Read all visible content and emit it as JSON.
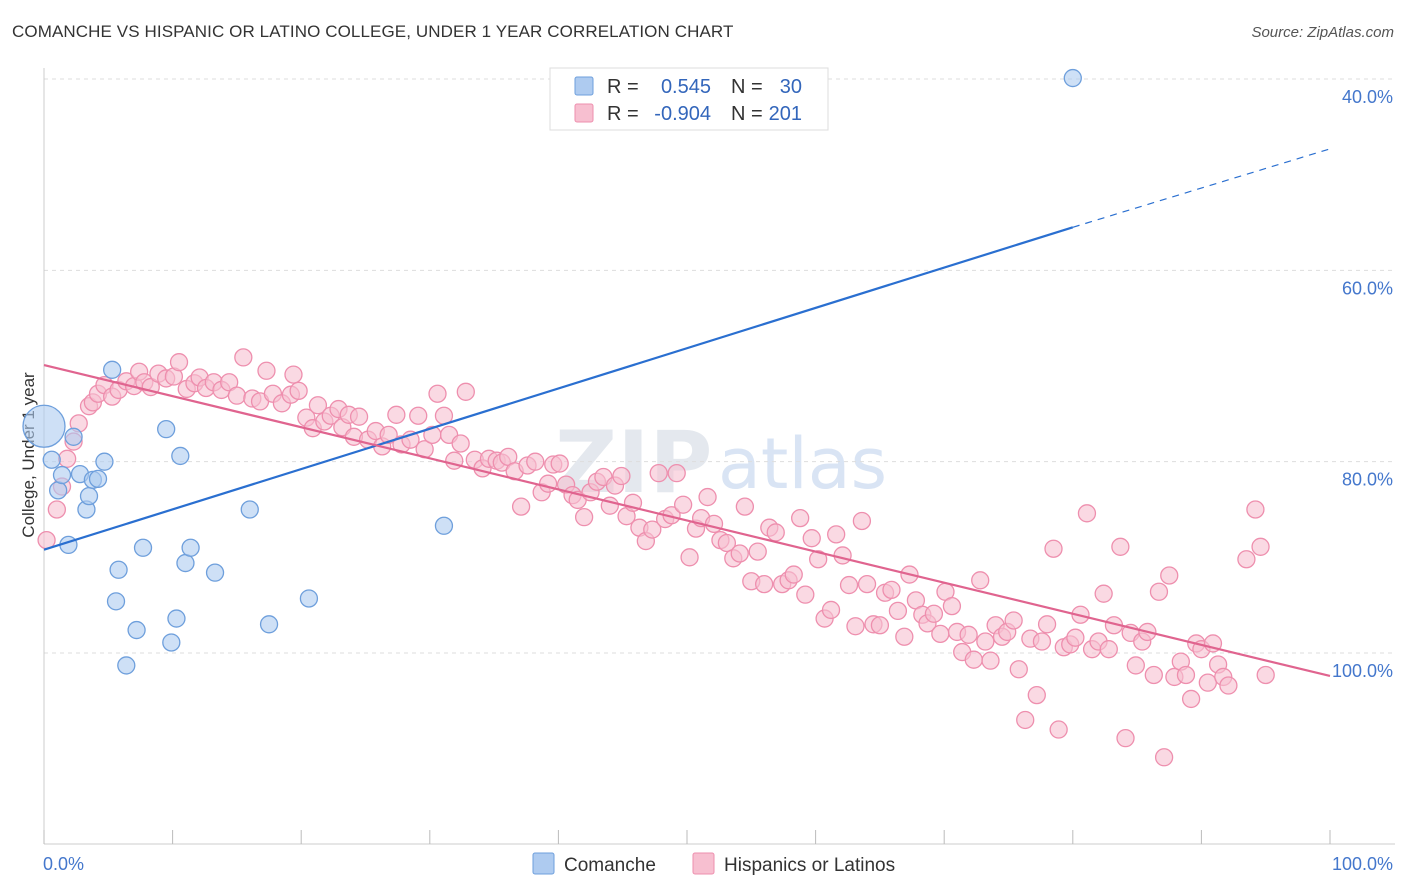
{
  "title": "COMANCHE VS HISPANIC OR LATINO COLLEGE, UNDER 1 YEAR CORRELATION CHART",
  "source": "Source: ZipAtlas.com",
  "watermark": {
    "zip": "ZIP",
    "atlas": "atlas"
  },
  "colors": {
    "comanche_fill": "#aecbf0",
    "comanche_stroke": "#6e9fdc",
    "comanche_line": "#2a6fd0",
    "hispanic_fill": "#f7bfd0",
    "hispanic_stroke": "#ee8fae",
    "hispanic_line": "#e0648f",
    "tick_label": "#4477cc",
    "grid": "#dddddd"
  },
  "legend": {
    "rows": [
      {
        "r_label": "R =",
        "r_value": "0.545",
        "n_label": "N =",
        "n_value": "30"
      },
      {
        "r_label": "R =",
        "r_value": "-0.904",
        "n_label": "N =",
        "n_value": "201"
      }
    ]
  },
  "bottom_legend": {
    "comanche": "Comanche",
    "hispanic": "Hispanics or Latinos"
  },
  "axes": {
    "x_min_label": "0.0%",
    "x_max_label": "100.0%",
    "y_tick_labels": [
      "100.0%",
      "80.0%",
      "60.0%",
      "40.0%"
    ],
    "y_title": "College, Under 1 year"
  },
  "chart_data": {
    "type": "scatter",
    "title": "COMANCHE VS HISPANIC OR LATINO COLLEGE, UNDER 1 YEAR CORRELATION CHART",
    "xlabel": "",
    "ylabel": "College, Under 1 year",
    "xlim": [
      0,
      100
    ],
    "ylim": [
      20,
      102
    ],
    "y_ticks": [
      40,
      60,
      80,
      100
    ],
    "grid": true,
    "legend_placement": "top-center",
    "series": [
      {
        "name": "Comanche",
        "r": 0.545,
        "n": 30,
        "trend": {
          "x": [
            0,
            80
          ],
          "y": [
            50.8,
            84.5
          ],
          "dashed_to": [
            100,
            92.7
          ]
        },
        "points": [
          {
            "x": 0.0,
            "y": 63.7,
            "big": true
          },
          {
            "x": 0.6,
            "y": 60.2
          },
          {
            "x": 1.1,
            "y": 57.0
          },
          {
            "x": 1.4,
            "y": 58.6
          },
          {
            "x": 1.9,
            "y": 51.3
          },
          {
            "x": 2.3,
            "y": 62.6
          },
          {
            "x": 2.8,
            "y": 58.7
          },
          {
            "x": 3.3,
            "y": 55.0
          },
          {
            "x": 3.5,
            "y": 56.4
          },
          {
            "x": 3.8,
            "y": 58.1
          },
          {
            "x": 4.2,
            "y": 58.2
          },
          {
            "x": 4.7,
            "y": 60.0
          },
          {
            "x": 5.3,
            "y": 69.6
          },
          {
            "x": 5.6,
            "y": 45.4
          },
          {
            "x": 5.8,
            "y": 48.7
          },
          {
            "x": 6.4,
            "y": 38.7
          },
          {
            "x": 7.2,
            "y": 42.4
          },
          {
            "x": 7.7,
            "y": 51.0
          },
          {
            "x": 9.5,
            "y": 63.4
          },
          {
            "x": 9.9,
            "y": 41.1
          },
          {
            "x": 10.3,
            "y": 43.6
          },
          {
            "x": 10.6,
            "y": 60.6
          },
          {
            "x": 11.0,
            "y": 49.4
          },
          {
            "x": 11.4,
            "y": 51.0
          },
          {
            "x": 13.3,
            "y": 48.4
          },
          {
            "x": 16.0,
            "y": 55.0
          },
          {
            "x": 17.5,
            "y": 43.0
          },
          {
            "x": 20.6,
            "y": 45.7
          },
          {
            "x": 31.1,
            "y": 53.3
          },
          {
            "x": 80.0,
            "y": 100.1
          }
        ]
      },
      {
        "name": "Hispanics or Latinos",
        "r": -0.904,
        "n": 201,
        "trend": {
          "x": [
            0,
            100
          ],
          "y": [
            70.1,
            37.6
          ]
        },
        "points": [
          {
            "x": 0.2,
            "y": 51.8
          },
          {
            "x": 1.0,
            "y": 55.0
          },
          {
            "x": 1.4,
            "y": 57.4
          },
          {
            "x": 1.8,
            "y": 60.3
          },
          {
            "x": 2.3,
            "y": 62.1
          },
          {
            "x": 2.7,
            "y": 64.0
          },
          {
            "x": 3.5,
            "y": 65.8
          },
          {
            "x": 3.8,
            "y": 66.2
          },
          {
            "x": 4.2,
            "y": 67.1
          },
          {
            "x": 4.7,
            "y": 68.0
          },
          {
            "x": 5.3,
            "y": 66.8
          },
          {
            "x": 5.8,
            "y": 67.5
          },
          {
            "x": 6.4,
            "y": 68.4
          },
          {
            "x": 7.0,
            "y": 67.9
          },
          {
            "x": 7.4,
            "y": 69.4
          },
          {
            "x": 7.8,
            "y": 68.3
          },
          {
            "x": 8.3,
            "y": 67.8
          },
          {
            "x": 8.9,
            "y": 69.2
          },
          {
            "x": 9.5,
            "y": 68.7
          },
          {
            "x": 10.1,
            "y": 68.9
          },
          {
            "x": 10.5,
            "y": 70.4
          },
          {
            "x": 11.1,
            "y": 67.6
          },
          {
            "x": 11.7,
            "y": 68.2
          },
          {
            "x": 12.1,
            "y": 68.8
          },
          {
            "x": 12.6,
            "y": 67.7
          },
          {
            "x": 13.2,
            "y": 68.3
          },
          {
            "x": 13.8,
            "y": 67.5
          },
          {
            "x": 14.4,
            "y": 68.3
          },
          {
            "x": 15.0,
            "y": 66.9
          },
          {
            "x": 15.5,
            "y": 70.9
          },
          {
            "x": 16.2,
            "y": 66.6
          },
          {
            "x": 16.8,
            "y": 66.3
          },
          {
            "x": 17.3,
            "y": 69.5
          },
          {
            "x": 17.8,
            "y": 67.1
          },
          {
            "x": 18.5,
            "y": 66.1
          },
          {
            "x": 19.2,
            "y": 67.0
          },
          {
            "x": 19.4,
            "y": 69.1
          },
          {
            "x": 19.8,
            "y": 67.4
          },
          {
            "x": 20.4,
            "y": 64.6
          },
          {
            "x": 20.9,
            "y": 63.5
          },
          {
            "x": 21.3,
            "y": 65.9
          },
          {
            "x": 21.8,
            "y": 64.2
          },
          {
            "x": 22.3,
            "y": 64.8
          },
          {
            "x": 22.9,
            "y": 65.5
          },
          {
            "x": 23.2,
            "y": 63.6
          },
          {
            "x": 23.7,
            "y": 64.9
          },
          {
            "x": 24.1,
            "y": 62.6
          },
          {
            "x": 24.5,
            "y": 64.7
          },
          {
            "x": 25.2,
            "y": 62.3
          },
          {
            "x": 25.8,
            "y": 63.2
          },
          {
            "x": 26.3,
            "y": 61.6
          },
          {
            "x": 26.8,
            "y": 62.8
          },
          {
            "x": 27.4,
            "y": 64.9
          },
          {
            "x": 27.8,
            "y": 61.8
          },
          {
            "x": 28.5,
            "y": 62.3
          },
          {
            "x": 29.1,
            "y": 64.8
          },
          {
            "x": 29.6,
            "y": 61.3
          },
          {
            "x": 30.2,
            "y": 62.8
          },
          {
            "x": 30.6,
            "y": 67.1
          },
          {
            "x": 31.1,
            "y": 64.8
          },
          {
            "x": 31.5,
            "y": 62.8
          },
          {
            "x": 31.9,
            "y": 60.1
          },
          {
            "x": 32.4,
            "y": 61.9
          },
          {
            "x": 32.8,
            "y": 67.3
          },
          {
            "x": 33.5,
            "y": 60.2
          },
          {
            "x": 34.1,
            "y": 59.3
          },
          {
            "x": 34.6,
            "y": 60.3
          },
          {
            "x": 35.2,
            "y": 60.1
          },
          {
            "x": 35.6,
            "y": 59.9
          },
          {
            "x": 36.1,
            "y": 60.5
          },
          {
            "x": 36.6,
            "y": 59.0
          },
          {
            "x": 37.1,
            "y": 55.3
          },
          {
            "x": 37.6,
            "y": 59.6
          },
          {
            "x": 38.2,
            "y": 60.0
          },
          {
            "x": 38.7,
            "y": 56.8
          },
          {
            "x": 39.2,
            "y": 57.7
          },
          {
            "x": 39.6,
            "y": 59.7
          },
          {
            "x": 40.1,
            "y": 59.8
          },
          {
            "x": 40.6,
            "y": 57.6
          },
          {
            "x": 41.1,
            "y": 56.5
          },
          {
            "x": 41.5,
            "y": 56.0
          },
          {
            "x": 42.0,
            "y": 54.2
          },
          {
            "x": 42.5,
            "y": 56.8
          },
          {
            "x": 43.0,
            "y": 57.9
          },
          {
            "x": 43.5,
            "y": 58.4
          },
          {
            "x": 44.0,
            "y": 55.4
          },
          {
            "x": 44.4,
            "y": 57.5
          },
          {
            "x": 44.9,
            "y": 58.5
          },
          {
            "x": 45.3,
            "y": 54.3
          },
          {
            "x": 45.8,
            "y": 55.7
          },
          {
            "x": 46.3,
            "y": 53.1
          },
          {
            "x": 46.8,
            "y": 51.7
          },
          {
            "x": 47.3,
            "y": 52.9
          },
          {
            "x": 47.8,
            "y": 58.8
          },
          {
            "x": 48.3,
            "y": 54.0
          },
          {
            "x": 48.8,
            "y": 54.4
          },
          {
            "x": 49.2,
            "y": 58.8
          },
          {
            "x": 49.7,
            "y": 55.5
          },
          {
            "x": 50.2,
            "y": 50.0
          },
          {
            "x": 50.7,
            "y": 53.0
          },
          {
            "x": 51.1,
            "y": 54.1
          },
          {
            "x": 51.6,
            "y": 56.3
          },
          {
            "x": 52.1,
            "y": 53.5
          },
          {
            "x": 52.6,
            "y": 51.8
          },
          {
            "x": 53.1,
            "y": 51.5
          },
          {
            "x": 53.6,
            "y": 49.9
          },
          {
            "x": 54.1,
            "y": 50.4
          },
          {
            "x": 54.5,
            "y": 55.3
          },
          {
            "x": 55.0,
            "y": 47.5
          },
          {
            "x": 55.5,
            "y": 50.6
          },
          {
            "x": 56.0,
            "y": 47.2
          },
          {
            "x": 56.4,
            "y": 53.1
          },
          {
            "x": 56.9,
            "y": 52.6
          },
          {
            "x": 57.4,
            "y": 47.2
          },
          {
            "x": 57.9,
            "y": 47.6
          },
          {
            "x": 58.3,
            "y": 48.2
          },
          {
            "x": 58.8,
            "y": 54.1
          },
          {
            "x": 59.2,
            "y": 46.1
          },
          {
            "x": 59.7,
            "y": 52.0
          },
          {
            "x": 60.2,
            "y": 49.8
          },
          {
            "x": 60.7,
            "y": 43.6
          },
          {
            "x": 61.2,
            "y": 44.5
          },
          {
            "x": 61.6,
            "y": 52.4
          },
          {
            "x": 62.1,
            "y": 50.2
          },
          {
            "x": 62.6,
            "y": 47.1
          },
          {
            "x": 63.1,
            "y": 42.8
          },
          {
            "x": 63.6,
            "y": 53.8
          },
          {
            "x": 64.0,
            "y": 47.2
          },
          {
            "x": 64.5,
            "y": 43.0
          },
          {
            "x": 65.0,
            "y": 42.9
          },
          {
            "x": 65.4,
            "y": 46.3
          },
          {
            "x": 65.9,
            "y": 46.6
          },
          {
            "x": 66.4,
            "y": 44.4
          },
          {
            "x": 66.9,
            "y": 41.7
          },
          {
            "x": 67.3,
            "y": 48.2
          },
          {
            "x": 67.8,
            "y": 45.5
          },
          {
            "x": 68.3,
            "y": 44.0
          },
          {
            "x": 68.7,
            "y": 43.1
          },
          {
            "x": 69.2,
            "y": 44.1
          },
          {
            "x": 69.7,
            "y": 42.0
          },
          {
            "x": 70.1,
            "y": 46.4
          },
          {
            "x": 70.6,
            "y": 44.9
          },
          {
            "x": 71.0,
            "y": 42.2
          },
          {
            "x": 71.4,
            "y": 40.1
          },
          {
            "x": 71.9,
            "y": 41.9
          },
          {
            "x": 72.3,
            "y": 39.3
          },
          {
            "x": 72.8,
            "y": 47.6
          },
          {
            "x": 73.2,
            "y": 41.2
          },
          {
            "x": 73.6,
            "y": 39.2
          },
          {
            "x": 74.0,
            "y": 42.9
          },
          {
            "x": 74.5,
            "y": 41.7
          },
          {
            "x": 74.9,
            "y": 42.2
          },
          {
            "x": 75.4,
            "y": 43.4
          },
          {
            "x": 75.8,
            "y": 38.3
          },
          {
            "x": 76.3,
            "y": 33.0
          },
          {
            "x": 76.7,
            "y": 41.5
          },
          {
            "x": 77.2,
            "y": 35.6
          },
          {
            "x": 77.6,
            "y": 41.2
          },
          {
            "x": 78.0,
            "y": 43.0
          },
          {
            "x": 78.5,
            "y": 50.9
          },
          {
            "x": 78.9,
            "y": 32.0
          },
          {
            "x": 79.3,
            "y": 40.6
          },
          {
            "x": 79.8,
            "y": 40.9
          },
          {
            "x": 80.2,
            "y": 41.6
          },
          {
            "x": 80.6,
            "y": 44.0
          },
          {
            "x": 81.1,
            "y": 54.6
          },
          {
            "x": 81.5,
            "y": 40.4
          },
          {
            "x": 82.0,
            "y": 41.2
          },
          {
            "x": 82.4,
            "y": 46.2
          },
          {
            "x": 82.8,
            "y": 40.4
          },
          {
            "x": 83.2,
            "y": 42.9
          },
          {
            "x": 83.7,
            "y": 51.1
          },
          {
            "x": 84.1,
            "y": 31.1
          },
          {
            "x": 84.5,
            "y": 42.1
          },
          {
            "x": 84.9,
            "y": 38.7
          },
          {
            "x": 85.4,
            "y": 41.2
          },
          {
            "x": 85.8,
            "y": 42.2
          },
          {
            "x": 86.3,
            "y": 37.7
          },
          {
            "x": 86.7,
            "y": 46.4
          },
          {
            "x": 87.1,
            "y": 29.1
          },
          {
            "x": 87.5,
            "y": 48.1
          },
          {
            "x": 87.9,
            "y": 37.5
          },
          {
            "x": 88.4,
            "y": 39.1
          },
          {
            "x": 88.8,
            "y": 37.7
          },
          {
            "x": 89.2,
            "y": 35.2
          },
          {
            "x": 89.6,
            "y": 41.0
          },
          {
            "x": 90.0,
            "y": 40.4
          },
          {
            "x": 90.5,
            "y": 36.9
          },
          {
            "x": 90.9,
            "y": 41.0
          },
          {
            "x": 91.3,
            "y": 38.8
          },
          {
            "x": 91.7,
            "y": 37.5
          },
          {
            "x": 92.1,
            "y": 36.6
          },
          {
            "x": 93.5,
            "y": 49.8
          },
          {
            "x": 94.2,
            "y": 55.0
          },
          {
            "x": 94.6,
            "y": 51.1
          },
          {
            "x": 95.0,
            "y": 37.7
          }
        ]
      }
    ]
  }
}
